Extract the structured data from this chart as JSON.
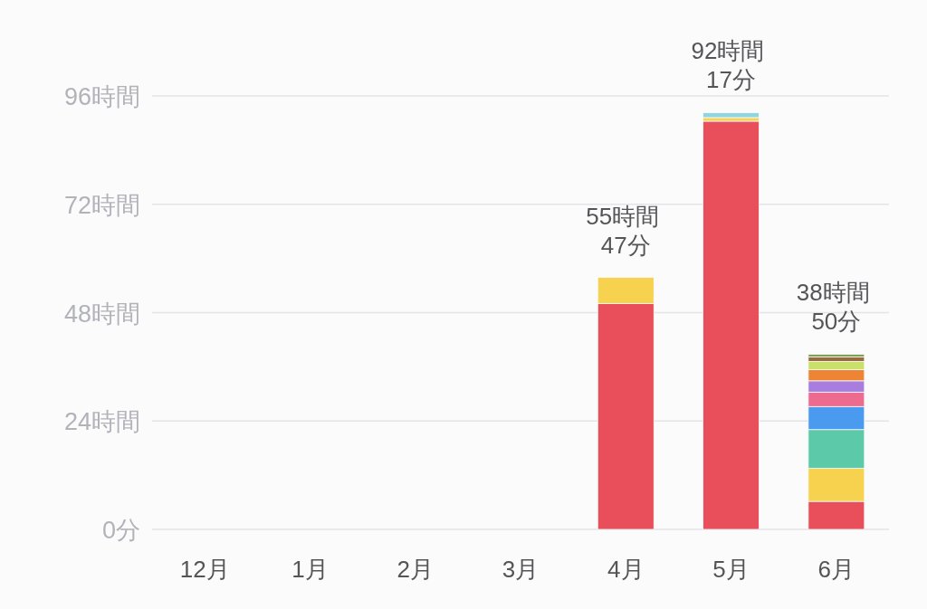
{
  "chart_data": {
    "type": "bar",
    "stacked": true,
    "categories": [
      "12月",
      "1月",
      "2月",
      "3月",
      "4月",
      "5月",
      "6月"
    ],
    "series": [
      {
        "color": "#e94e5b",
        "values": [
          null,
          null,
          null,
          null,
          50.0,
          90.4,
          6.2
        ]
      },
      {
        "color": "#f6d24e",
        "values": [
          null,
          null,
          null,
          null,
          5.8,
          0.8,
          7.3
        ]
      },
      {
        "color": "#5ccaa8",
        "values": [
          null,
          null,
          null,
          null,
          null,
          null,
          8.6
        ]
      },
      {
        "color": "#4a9af0",
        "values": [
          null,
          null,
          null,
          null,
          null,
          null,
          5.1
        ]
      },
      {
        "color": "#ec6b8e",
        "values": [
          null,
          null,
          null,
          null,
          null,
          null,
          3.2
        ]
      },
      {
        "color": "#a77ee0",
        "values": [
          null,
          null,
          null,
          null,
          null,
          null,
          2.5
        ]
      },
      {
        "color": "#ee8535",
        "values": [
          null,
          null,
          null,
          null,
          null,
          null,
          2.5
        ]
      },
      {
        "color": "#c9e06a",
        "values": [
          null,
          null,
          null,
          null,
          null,
          null,
          1.8
        ]
      },
      {
        "color": "#9b6a3a",
        "values": [
          null,
          null,
          null,
          null,
          null,
          null,
          1.0
        ]
      },
      {
        "color": "#7aa05a",
        "values": [
          null,
          null,
          null,
          null,
          null,
          null,
          0.6
        ]
      },
      {
        "color": "#8fd6e0",
        "values": [
          null,
          null,
          null,
          null,
          null,
          1.1,
          null
        ]
      }
    ],
    "ylim": [
      0,
      96
    ],
    "yticks": [
      {
        "value": 0,
        "label": "0分"
      },
      {
        "value": 24,
        "label": "24時間"
      },
      {
        "value": 48,
        "label": "48時間"
      },
      {
        "value": 72,
        "label": "72時間"
      },
      {
        "value": 96,
        "label": "96時間"
      }
    ],
    "grid": "y",
    "totals": [
      null,
      null,
      null,
      null,
      "55時間 47分",
      "92時間 17分",
      "38時間 50分"
    ]
  }
}
